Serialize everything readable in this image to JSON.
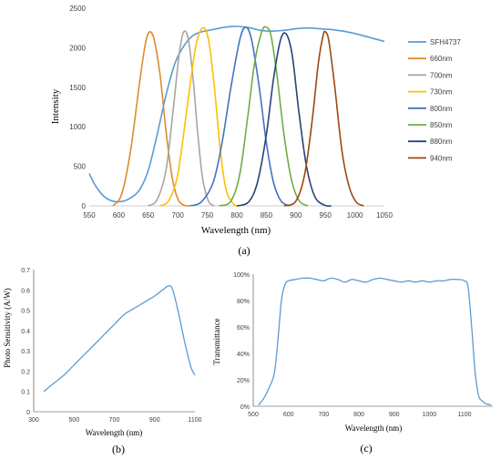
{
  "chart_data": [
    {
      "type": "line",
      "caption": "(a)",
      "xlabel": "Wavelength (nm)",
      "ylabel": "Intensity",
      "xlim": [
        550,
        1050
      ],
      "ylim": [
        0,
        2500
      ],
      "x_ticks": [
        550,
        600,
        650,
        700,
        750,
        800,
        850,
        900,
        950,
        1000,
        1050
      ],
      "y_ticks": [
        0,
        500,
        1000,
        1500,
        2000,
        2500
      ],
      "legend_position": "right",
      "series": [
        {
          "name": "SFH4737",
          "color": "#5b9bd5",
          "points": [
            [
              550,
              410
            ],
            [
              560,
              260
            ],
            [
              575,
              120
            ],
            [
              590,
              60
            ],
            [
              605,
              55
            ],
            [
              620,
              100
            ],
            [
              635,
              200
            ],
            [
              650,
              450
            ],
            [
              665,
              900
            ],
            [
              680,
              1400
            ],
            [
              695,
              1800
            ],
            [
              710,
              2020
            ],
            [
              725,
              2150
            ],
            [
              740,
              2200
            ],
            [
              760,
              2230
            ],
            [
              780,
              2260
            ],
            [
              800,
              2270
            ],
            [
              820,
              2255
            ],
            [
              840,
              2220
            ],
            [
              860,
              2210
            ],
            [
              880,
              2220
            ],
            [
              900,
              2240
            ],
            [
              920,
              2250
            ],
            [
              940,
              2240
            ],
            [
              960,
              2230
            ],
            [
              980,
              2210
            ],
            [
              1000,
              2180
            ],
            [
              1020,
              2140
            ],
            [
              1040,
              2100
            ],
            [
              1050,
              2080
            ]
          ]
        },
        {
          "name": "660nm",
          "color": "#e08a2e",
          "points": [
            [
              590,
              0
            ],
            [
              605,
              150
            ],
            [
              620,
              700
            ],
            [
              635,
              1550
            ],
            [
              645,
              2050
            ],
            [
              652,
              2200
            ],
            [
              660,
              2100
            ],
            [
              670,
              1650
            ],
            [
              680,
              950
            ],
            [
              690,
              380
            ],
            [
              700,
              90
            ],
            [
              710,
              10
            ],
            [
              720,
              0
            ]
          ]
        },
        {
          "name": "700nm",
          "color": "#a5a5a5",
          "points": [
            [
              650,
              0
            ],
            [
              665,
              80
            ],
            [
              680,
              450
            ],
            [
              692,
              1200
            ],
            [
              702,
              1900
            ],
            [
              710,
              2200
            ],
            [
              718,
              2100
            ],
            [
              726,
              1600
            ],
            [
              734,
              900
            ],
            [
              742,
              350
            ],
            [
              752,
              60
            ],
            [
              762,
              0
            ]
          ]
        },
        {
          "name": "730nm",
          "color": "#ffc000",
          "points": [
            [
              670,
              0
            ],
            [
              685,
              70
            ],
            [
              700,
              400
            ],
            [
              715,
              1200
            ],
            [
              730,
              2000
            ],
            [
              742,
              2250
            ],
            [
              752,
              2100
            ],
            [
              762,
              1500
            ],
            [
              772,
              700
            ],
            [
              782,
              200
            ],
            [
              795,
              20
            ],
            [
              805,
              0
            ]
          ]
        },
        {
          "name": "800nm",
          "color": "#4472c4",
          "points": [
            [
              720,
              0
            ],
            [
              740,
              50
            ],
            [
              760,
              300
            ],
            [
              775,
              800
            ],
            [
              790,
              1500
            ],
            [
              805,
              2100
            ],
            [
              815,
              2260
            ],
            [
              825,
              2100
            ],
            [
              838,
              1500
            ],
            [
              850,
              800
            ],
            [
              862,
              300
            ],
            [
              875,
              60
            ],
            [
              890,
              0
            ]
          ]
        },
        {
          "name": "850nm",
          "color": "#70ad47",
          "points": [
            [
              770,
              0
            ],
            [
              790,
              60
            ],
            [
              805,
              400
            ],
            [
              818,
              1100
            ],
            [
              830,
              1800
            ],
            [
              842,
              2200
            ],
            [
              850,
              2260
            ],
            [
              858,
              2150
            ],
            [
              868,
              1650
            ],
            [
              880,
              900
            ],
            [
              892,
              350
            ],
            [
              905,
              70
            ],
            [
              920,
              0
            ]
          ]
        },
        {
          "name": "880nm",
          "color": "#264478",
          "points": [
            [
              800,
              0
            ],
            [
              820,
              50
            ],
            [
              835,
              300
            ],
            [
              850,
              900
            ],
            [
              862,
              1600
            ],
            [
              874,
              2100
            ],
            [
              884,
              2170
            ],
            [
              894,
              1900
            ],
            [
              905,
              1200
            ],
            [
              918,
              500
            ],
            [
              932,
              120
            ],
            [
              948,
              10
            ],
            [
              960,
              0
            ]
          ]
        },
        {
          "name": "940nm",
          "color": "#9e480e",
          "points": [
            [
              880,
              0
            ],
            [
              900,
              60
            ],
            [
              915,
              400
            ],
            [
              928,
              1100
            ],
            [
              938,
              1800
            ],
            [
              946,
              2150
            ],
            [
              950,
              2200
            ],
            [
              956,
              2080
            ],
            [
              966,
              1500
            ],
            [
              978,
              700
            ],
            [
              990,
              250
            ],
            [
              1002,
              50
            ],
            [
              1015,
              0
            ]
          ]
        }
      ]
    },
    {
      "type": "line",
      "caption": "(b)",
      "xlabel": "Wavelength (nm)",
      "ylabel": "Photo Sensitivity (A/W)",
      "xlim": [
        300,
        1100
      ],
      "ylim": [
        0,
        0.7
      ],
      "x_ticks": [
        300,
        500,
        700,
        900,
        1100
      ],
      "y_ticks": [
        0,
        0.1,
        0.2,
        0.3,
        0.4,
        0.5,
        0.6,
        0.7
      ],
      "y_tick_labels": [
        "0",
        "0.1",
        "0.2",
        "0.3",
        "0.4",
        "0.5",
        "0.6",
        "0.7"
      ],
      "series": [
        {
          "color": "#5b9bd5",
          "points": [
            [
              350,
              0.1
            ],
            [
              400,
              0.14
            ],
            [
              450,
              0.18
            ],
            [
              500,
              0.23
            ],
            [
              550,
              0.28
            ],
            [
              600,
              0.33
            ],
            [
              650,
              0.38
            ],
            [
              700,
              0.43
            ],
            [
              750,
              0.48
            ],
            [
              800,
              0.51
            ],
            [
              850,
              0.54
            ],
            [
              900,
              0.57
            ],
            [
              940,
              0.6
            ],
            [
              970,
              0.62
            ],
            [
              990,
              0.6
            ],
            [
              1020,
              0.48
            ],
            [
              1050,
              0.34
            ],
            [
              1080,
              0.22
            ],
            [
              1100,
              0.18
            ]
          ]
        }
      ]
    },
    {
      "type": "line",
      "caption": "(c)",
      "xlabel": "Wavelength (nm)",
      "ylabel": "Transmittance",
      "xlim": [
        500,
        1180
      ],
      "ylim": [
        0,
        100
      ],
      "x_ticks": [
        500,
        600,
        700,
        800,
        900,
        1000,
        1100
      ],
      "y_ticks": [
        0,
        20,
        40,
        60,
        80,
        100
      ],
      "y_tick_labels": [
        "0%",
        "20%",
        "40%",
        "60%",
        "80%",
        "100%"
      ],
      "series": [
        {
          "color": "#5b9bd5",
          "points": [
            [
              515,
              1
            ],
            [
              530,
              6
            ],
            [
              545,
              14
            ],
            [
              560,
              25
            ],
            [
              570,
              50
            ],
            [
              580,
              80
            ],
            [
              590,
              92
            ],
            [
              600,
              95
            ],
            [
              620,
              96
            ],
            [
              640,
              97
            ],
            [
              660,
              97
            ],
            [
              680,
              96
            ],
            [
              700,
              95
            ],
            [
              720,
              97
            ],
            [
              740,
              96
            ],
            [
              760,
              94
            ],
            [
              780,
              96
            ],
            [
              800,
              95
            ],
            [
              820,
              94
            ],
            [
              840,
              96
            ],
            [
              860,
              97
            ],
            [
              880,
              96
            ],
            [
              900,
              95
            ],
            [
              920,
              94
            ],
            [
              940,
              95
            ],
            [
              960,
              94
            ],
            [
              980,
              95
            ],
            [
              1000,
              94
            ],
            [
              1020,
              95
            ],
            [
              1040,
              95
            ],
            [
              1060,
              96
            ],
            [
              1080,
              96
            ],
            [
              1100,
              95
            ],
            [
              1110,
              90
            ],
            [
              1120,
              60
            ],
            [
              1130,
              25
            ],
            [
              1140,
              8
            ],
            [
              1150,
              4
            ],
            [
              1160,
              2
            ],
            [
              1175,
              1
            ]
          ]
        }
      ]
    }
  ]
}
